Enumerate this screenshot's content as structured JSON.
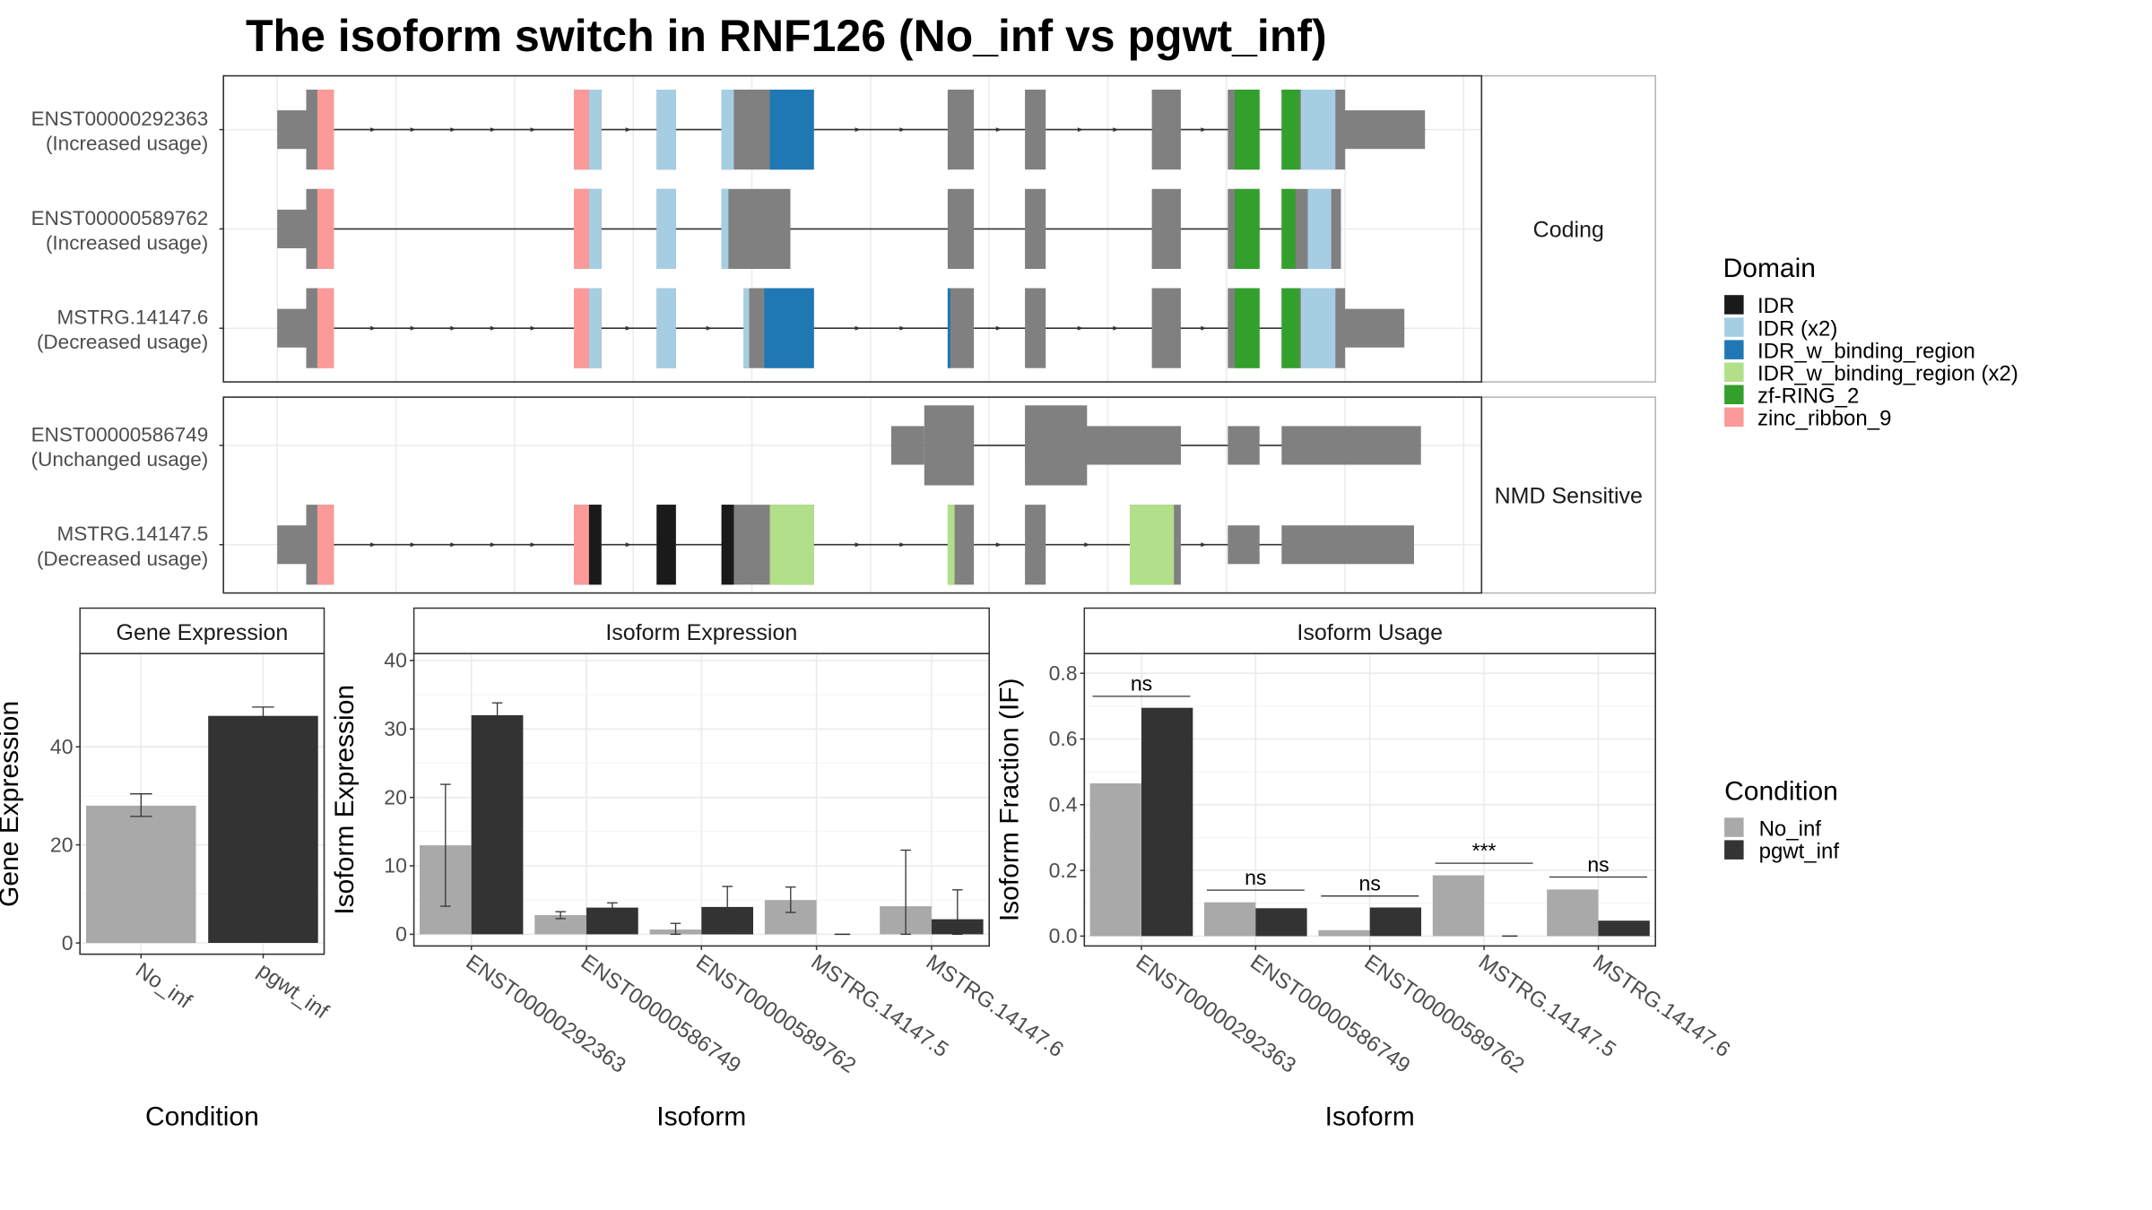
{
  "title": "The isoform switch in RNF126 (No_inf vs pgwt_inf)",
  "colors": {
    "exon": "#808080",
    "No_inf": "#A9A9A9",
    "pgwt_inf": "#333333",
    "IDR": "#1A1A1A",
    "IDR (x2)": "#A6CEE3",
    "IDR_w_binding_region": "#1F78B4",
    "IDR_w_binding_region (x2)": "#B2DF8A",
    "zf-RING_2": "#33A02C",
    "zinc_ribbon_9": "#FB9A99"
  },
  "domain_legend": {
    "title": "Domain",
    "entries": [
      "IDR",
      "IDR (x2)",
      "IDR_w_binding_region",
      "IDR_w_binding_region (x2)",
      "zf-RING_2",
      "zinc_ribbon_9"
    ]
  },
  "condition_legend": {
    "title": "Condition",
    "entries": [
      "No_inf",
      "pgwt_inf"
    ]
  },
  "structure": {
    "panels": [
      {
        "label": "Coding",
        "isoforms": [
          {
            "id": "ENST00000292363",
            "usage": "(Increased usage)",
            "utr": [
              [
                201,
                222
              ],
              [
                975,
                1033
              ]
            ],
            "cds": [
              [
                222,
                242
              ],
              [
                416,
                436
              ],
              [
                476,
                490
              ],
              [
                523,
                590
              ],
              [
                687,
                706
              ],
              [
                743,
                758
              ],
              [
                835,
                856
              ],
              [
                890,
                913
              ],
              [
                929,
                975
              ]
            ],
            "domains": [
              [
                230,
                242,
                "zinc_ribbon_9"
              ],
              [
                416,
                427,
                "zinc_ribbon_9"
              ],
              [
                427,
                436,
                "IDR (x2)"
              ],
              [
                476,
                490,
                "IDR (x2)"
              ],
              [
                523,
                532,
                "IDR (x2)"
              ],
              [
                558,
                590,
                "IDR_w_binding_region"
              ],
              [
                895,
                913,
                "zf-RING_2"
              ],
              [
                929,
                942,
                "zf-RING_2"
              ],
              [
                943,
                968,
                "IDR (x2)"
              ]
            ],
            "arrows": true
          },
          {
            "id": "ENST00000589762",
            "usage": "(Increased usage)",
            "utr": [
              [
                201,
                222
              ]
            ],
            "cds": [
              [
                222,
                242
              ],
              [
                416,
                436
              ],
              [
                476,
                490
              ],
              [
                523,
                573
              ],
              [
                687,
                706
              ],
              [
                743,
                758
              ],
              [
                835,
                856
              ],
              [
                890,
                913
              ],
              [
                929,
                972
              ]
            ],
            "domains": [
              [
                230,
                242,
                "zinc_ribbon_9"
              ],
              [
                416,
                427,
                "zinc_ribbon_9"
              ],
              [
                427,
                436,
                "IDR (x2)"
              ],
              [
                476,
                490,
                "IDR (x2)"
              ],
              [
                523,
                528,
                "IDR (x2)"
              ],
              [
                895,
                913,
                "zf-RING_2"
              ],
              [
                929,
                939,
                "zf-RING_2"
              ],
              [
                948,
                965,
                "IDR (x2)"
              ]
            ],
            "arrows": false
          },
          {
            "id": "MSTRG.14147.6",
            "usage": "(Decreased usage)",
            "utr": [
              [
                201,
                222
              ],
              [
                975,
                1018
              ]
            ],
            "cds": [
              [
                222,
                242
              ],
              [
                416,
                436
              ],
              [
                476,
                490
              ],
              [
                539,
                590
              ],
              [
                687,
                706
              ],
              [
                743,
                758
              ],
              [
                835,
                856
              ],
              [
                890,
                913
              ],
              [
                929,
                975
              ]
            ],
            "domains": [
              [
                230,
                242,
                "zinc_ribbon_9"
              ],
              [
                416,
                427,
                "zinc_ribbon_9"
              ],
              [
                427,
                436,
                "IDR (x2)"
              ],
              [
                476,
                490,
                "IDR (x2)"
              ],
              [
                539,
                543,
                "IDR (x2)"
              ],
              [
                554,
                590,
                "IDR_w_binding_region"
              ],
              [
                687,
                689,
                "IDR_w_binding_region"
              ],
              [
                895,
                913,
                "zf-RING_2"
              ],
              [
                929,
                942,
                "zf-RING_2"
              ],
              [
                943,
                968,
                "IDR (x2)"
              ]
            ],
            "arrows": true
          }
        ]
      },
      {
        "label": "NMD Sensitive",
        "isoforms": [
          {
            "id": "ENST00000586749",
            "usage": "(Unchanged usage)",
            "utr": [
              [
                646,
                670
              ],
              [
                743,
                856
              ],
              [
                890,
                913
              ],
              [
                929,
                1030
              ]
            ],
            "cds": [
              [
                670,
                706
              ],
              [
                743,
                788
              ]
            ],
            "domains": [],
            "arrows": false
          },
          {
            "id": "MSTRG.14147.5",
            "usage": "(Decreased usage)",
            "utr": [
              [
                201,
                222
              ],
              [
                890,
                913
              ],
              [
                929,
                1025
              ]
            ],
            "cds": [
              [
                222,
                242
              ],
              [
                416,
                436
              ],
              [
                476,
                490
              ],
              [
                523,
                590
              ],
              [
                687,
                706
              ],
              [
                743,
                758
              ],
              [
                819,
                856
              ]
            ],
            "domains": [
              [
                230,
                242,
                "zinc_ribbon_9"
              ],
              [
                416,
                427,
                "zinc_ribbon_9"
              ],
              [
                427,
                436,
                "IDR"
              ],
              [
                476,
                490,
                "IDR"
              ],
              [
                523,
                532,
                "IDR"
              ],
              [
                558,
                590,
                "IDR_w_binding_region (x2)"
              ],
              [
                687,
                692,
                "IDR_w_binding_region (x2)"
              ],
              [
                819,
                851,
                "IDR_w_binding_region (x2)"
              ]
            ],
            "arrows": true
          }
        ]
      }
    ]
  },
  "chart_data": [
    {
      "type": "bar",
      "title": "Gene Expression",
      "xlabel": "Condition",
      "ylabel": "Gene Expression",
      "categories": [
        "No_inf",
        "pgwt_inf"
      ],
      "values": [
        28,
        46.3
      ],
      "errors": [
        [
          25.8,
          30.4
        ],
        [
          44.6,
          48.1
        ]
      ],
      "ylim": [
        -2.3,
        59
      ],
      "yticks": [
        0,
        20,
        40
      ]
    },
    {
      "type": "bar",
      "title": "Isoform Expression",
      "xlabel": "Isoform",
      "ylabel": "Isoform Expression",
      "categories": [
        "ENST00000292363",
        "ENST00000586749",
        "ENST00000589762",
        "MSTRG.14147.5",
        "MSTRG.14147.6"
      ],
      "series": [
        {
          "name": "No_inf",
          "values": [
            13,
            2.8,
            0.7,
            5.0,
            4.1
          ],
          "errors": [
            [
              4.1,
              21.9
            ],
            [
              2.3,
              3.3
            ],
            [
              0.0,
              1.6
            ],
            [
              3.2,
              6.9
            ],
            [
              0.0,
              12.3
            ]
          ]
        },
        {
          "name": "pgwt_inf",
          "values": [
            32,
            3.9,
            4.0,
            0,
            2.2
          ],
          "errors": [
            [
              30.2,
              33.8
            ],
            [
              3.2,
              4.6
            ],
            [
              1.0,
              7.0
            ],
            null,
            [
              0.0,
              6.5
            ]
          ]
        }
      ],
      "ylim": [
        -1.7,
        41
      ],
      "yticks": [
        0,
        10,
        20,
        30,
        40
      ]
    },
    {
      "type": "bar",
      "title": "Isoform Usage",
      "xlabel": "Isoform",
      "ylabel": "Isoform Fraction (IF)",
      "categories": [
        "ENST00000292363",
        "ENST00000586749",
        "ENST00000589762",
        "MSTRG.14147.5",
        "MSTRG.14147.6"
      ],
      "series": [
        {
          "name": "No_inf",
          "values": [
            0.465,
            0.103,
            0.018,
            0.185,
            0.142
          ]
        },
        {
          "name": "pgwt_inf",
          "values": [
            0.695,
            0.085,
            0.087,
            0,
            0.047
          ]
        }
      ],
      "significance": [
        "ns",
        "ns",
        "ns",
        "***",
        "ns"
      ],
      "sig_y": [
        0.73,
        0.14,
        0.122,
        0.222,
        0.18
      ],
      "ylim": [
        -0.03,
        0.86
      ],
      "yticks": [
        0.0,
        0.2,
        0.4,
        0.6,
        0.8
      ],
      "ytick_labels": [
        "0.0",
        "0.2",
        "0.4",
        "0.6",
        "0.8"
      ]
    }
  ]
}
